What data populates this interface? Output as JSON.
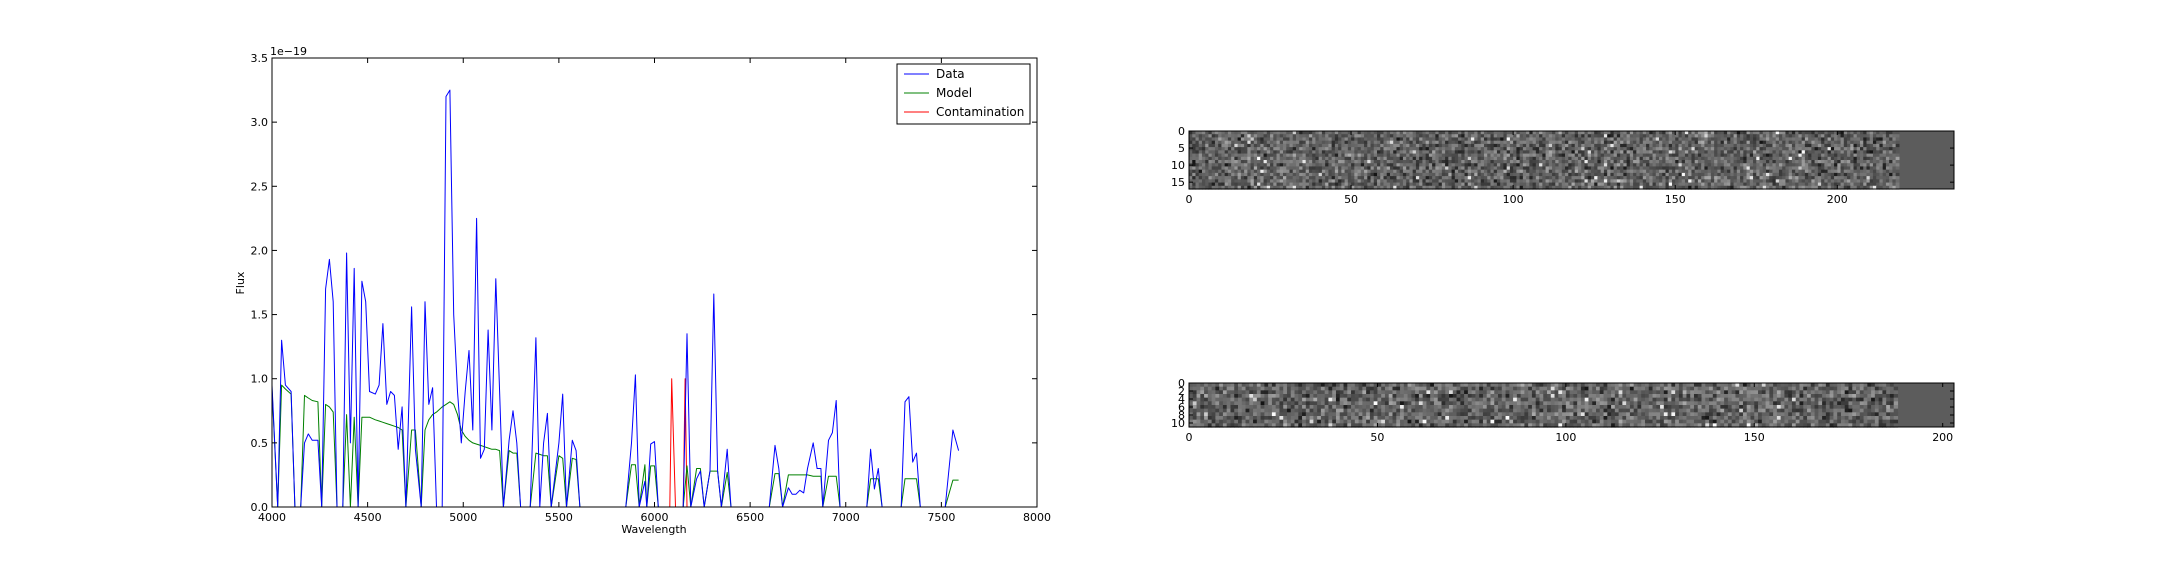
{
  "chart_data": [
    {
      "type": "line",
      "xlabel": "Wavelength",
      "ylabel": "Flux",
      "offset_text": "1e−19",
      "xlim": [
        4000,
        8000
      ],
      "ylim": [
        0.0,
        3.5
      ],
      "xticks": [
        "4000",
        "4500",
        "5000",
        "5500",
        "6000",
        "6500",
        "7000",
        "7500",
        "8000"
      ],
      "yticks": [
        "0.0",
        "0.5",
        "1.0",
        "1.5",
        "2.0",
        "2.5",
        "3.0",
        "3.5"
      ],
      "grid": false,
      "legend_position": "top-right",
      "series": [
        {
          "name": "Data",
          "color": "#0000ff",
          "points": [
            [
              4000,
              0.95
            ],
            [
              4030,
              0.0
            ],
            [
              4050,
              1.3
            ],
            [
              4070,
              0.95
            ],
            [
              4100,
              0.9
            ],
            [
              4120,
              0.0
            ],
            [
              4150,
              0.0
            ],
            [
              4170,
              0.5
            ],
            [
              4190,
              0.57
            ],
            [
              4210,
              0.52
            ],
            [
              4240,
              0.52
            ],
            [
              4260,
              0.0
            ],
            [
              4280,
              1.7
            ],
            [
              4300,
              1.93
            ],
            [
              4320,
              1.6
            ],
            [
              4340,
              0.0
            ],
            [
              4370,
              0.0
            ],
            [
              4390,
              1.98
            ],
            [
              4410,
              0.5
            ],
            [
              4430,
              1.86
            ],
            [
              4450,
              0.0
            ],
            [
              4470,
              1.76
            ],
            [
              4490,
              1.6
            ],
            [
              4510,
              0.9
            ],
            [
              4540,
              0.88
            ],
            [
              4560,
              0.95
            ],
            [
              4580,
              1.43
            ],
            [
              4600,
              0.8
            ],
            [
              4620,
              0.9
            ],
            [
              4640,
              0.87
            ],
            [
              4660,
              0.45
            ],
            [
              4680,
              0.78
            ],
            [
              4700,
              0.0
            ],
            [
              4730,
              1.56
            ],
            [
              4750,
              0.45
            ],
            [
              4780,
              0.0
            ],
            [
              4800,
              1.6
            ],
            [
              4820,
              0.8
            ],
            [
              4840,
              0.93
            ],
            [
              4860,
              0.0
            ],
            [
              4890,
              0.0
            ],
            [
              4910,
              3.2
            ],
            [
              4930,
              3.25
            ],
            [
              4950,
              1.5
            ],
            [
              4970,
              0.9
            ],
            [
              4990,
              0.5
            ],
            [
              5010,
              0.9
            ],
            [
              5030,
              1.22
            ],
            [
              5050,
              0.6
            ],
            [
              5070,
              2.25
            ],
            [
              5090,
              0.38
            ],
            [
              5110,
              0.45
            ],
            [
              5130,
              1.38
            ],
            [
              5150,
              0.6
            ],
            [
              5170,
              1.78
            ],
            [
              5190,
              0.9
            ],
            [
              5210,
              0.0
            ],
            [
              5240,
              0.52
            ],
            [
              5260,
              0.75
            ],
            [
              5280,
              0.5
            ],
            [
              5300,
              0.0
            ],
            [
              5350,
              0.0
            ],
            [
              5380,
              1.32
            ],
            [
              5400,
              0.0
            ],
            [
              5420,
              0.5
            ],
            [
              5440,
              0.73
            ],
            [
              5460,
              0.0
            ],
            [
              5500,
              0.5
            ],
            [
              5520,
              0.88
            ],
            [
              5540,
              0.0
            ],
            [
              5570,
              0.52
            ],
            [
              5590,
              0.44
            ],
            [
              5610,
              0.0
            ],
            [
              5850,
              0.0
            ],
            [
              5880,
              0.5
            ],
            [
              5900,
              1.03
            ],
            [
              5920,
              0.0
            ],
            [
              5950,
              0.2
            ],
            [
              5960,
              0.0
            ],
            [
              5980,
              0.49
            ],
            [
              6000,
              0.51
            ],
            [
              6020,
              0.0
            ],
            [
              6150,
              0.0
            ],
            [
              6170,
              1.35
            ],
            [
              6190,
              0.0
            ],
            [
              6220,
              0.22
            ],
            [
              6240,
              0.28
            ],
            [
              6260,
              0.0
            ],
            [
              6290,
              0.28
            ],
            [
              6310,
              1.66
            ],
            [
              6330,
              0.28
            ],
            [
              6350,
              0.0
            ],
            [
              6380,
              0.45
            ],
            [
              6400,
              0.0
            ],
            [
              6600,
              0.0
            ],
            [
              6630,
              0.48
            ],
            [
              6650,
              0.3
            ],
            [
              6670,
              0.0
            ],
            [
              6700,
              0.15
            ],
            [
              6720,
              0.1
            ],
            [
              6740,
              0.1
            ],
            [
              6760,
              0.13
            ],
            [
              6780,
              0.11
            ],
            [
              6800,
              0.3
            ],
            [
              6830,
              0.5
            ],
            [
              6850,
              0.3
            ],
            [
              6870,
              0.3
            ],
            [
              6880,
              0.0
            ],
            [
              6910,
              0.52
            ],
            [
              6930,
              0.58
            ],
            [
              6950,
              0.83
            ],
            [
              6970,
              0.0
            ],
            [
              7110,
              0.0
            ],
            [
              7130,
              0.45
            ],
            [
              7150,
              0.14
            ],
            [
              7170,
              0.3
            ],
            [
              7190,
              0.0
            ],
            [
              7290,
              0.0
            ],
            [
              7310,
              0.82
            ],
            [
              7330,
              0.86
            ],
            [
              7350,
              0.35
            ],
            [
              7370,
              0.42
            ],
            [
              7390,
              0.0
            ],
            [
              7520,
              0.0
            ],
            [
              7560,
              0.6
            ],
            [
              7590,
              0.44
            ]
          ]
        },
        {
          "name": "Model",
          "color": "#008000",
          "points": [
            [
              4000,
              0.92
            ],
            [
              4030,
              0.0
            ],
            [
              4050,
              0.95
            ],
            [
              4070,
              0.92
            ],
            [
              4100,
              0.88
            ],
            [
              4120,
              0.0
            ],
            [
              4150,
              0.0
            ],
            [
              4170,
              0.87
            ],
            [
              4190,
              0.85
            ],
            [
              4210,
              0.83
            ],
            [
              4240,
              0.82
            ],
            [
              4260,
              0.0
            ],
            [
              4280,
              0.8
            ],
            [
              4300,
              0.78
            ],
            [
              4320,
              0.74
            ],
            [
              4340,
              0.0
            ],
            [
              4370,
              0.0
            ],
            [
              4390,
              0.72
            ],
            [
              4410,
              0.0
            ],
            [
              4430,
              0.7
            ],
            [
              4450,
              0.0
            ],
            [
              4470,
              0.7
            ],
            [
              4490,
              0.7
            ],
            [
              4510,
              0.7
            ],
            [
              4540,
              0.68
            ],
            [
              4560,
              0.67
            ],
            [
              4580,
              0.66
            ],
            [
              4600,
              0.65
            ],
            [
              4620,
              0.64
            ],
            [
              4640,
              0.63
            ],
            [
              4660,
              0.62
            ],
            [
              4680,
              0.6
            ],
            [
              4700,
              0.0
            ],
            [
              4730,
              0.6
            ],
            [
              4750,
              0.6
            ],
            [
              4780,
              0.0
            ],
            [
              4800,
              0.6
            ],
            [
              4820,
              0.68
            ],
            [
              4840,
              0.72
            ],
            [
              4860,
              0.74
            ],
            [
              4890,
              0.78
            ],
            [
              4910,
              0.8
            ],
            [
              4930,
              0.82
            ],
            [
              4950,
              0.8
            ],
            [
              4970,
              0.72
            ],
            [
              4990,
              0.6
            ],
            [
              5010,
              0.55
            ],
            [
              5030,
              0.52
            ],
            [
              5050,
              0.5
            ],
            [
              5070,
              0.49
            ],
            [
              5090,
              0.48
            ],
            [
              5110,
              0.47
            ],
            [
              5130,
              0.46
            ],
            [
              5150,
              0.45
            ],
            [
              5170,
              0.45
            ],
            [
              5190,
              0.44
            ],
            [
              5210,
              0.0
            ],
            [
              5240,
              0.44
            ],
            [
              5260,
              0.42
            ],
            [
              5280,
              0.42
            ],
            [
              5300,
              0.0
            ],
            [
              5350,
              0.0
            ],
            [
              5380,
              0.42
            ],
            [
              5400,
              0.41
            ],
            [
              5420,
              0.4
            ],
            [
              5440,
              0.4
            ],
            [
              5460,
              0.0
            ],
            [
              5500,
              0.4
            ],
            [
              5520,
              0.38
            ],
            [
              5540,
              0.0
            ],
            [
              5570,
              0.38
            ],
            [
              5590,
              0.37
            ],
            [
              5610,
              0.0
            ],
            [
              5850,
              0.0
            ],
            [
              5880,
              0.33
            ],
            [
              5900,
              0.33
            ],
            [
              5920,
              0.0
            ],
            [
              5950,
              0.33
            ],
            [
              5960,
              0.0
            ],
            [
              5980,
              0.32
            ],
            [
              6000,
              0.32
            ],
            [
              6020,
              0.0
            ],
            [
              6150,
              0.0
            ],
            [
              6170,
              0.32
            ],
            [
              6190,
              0.0
            ],
            [
              6220,
              0.3
            ],
            [
              6240,
              0.3
            ],
            [
              6260,
              0.0
            ],
            [
              6290,
              0.28
            ],
            [
              6310,
              0.28
            ],
            [
              6330,
              0.28
            ],
            [
              6350,
              0.0
            ],
            [
              6380,
              0.27
            ],
            [
              6400,
              0.0
            ],
            [
              6600,
              0.0
            ],
            [
              6630,
              0.26
            ],
            [
              6650,
              0.26
            ],
            [
              6670,
              0.0
            ],
            [
              6700,
              0.25
            ],
            [
              6720,
              0.25
            ],
            [
              6740,
              0.25
            ],
            [
              6760,
              0.25
            ],
            [
              6780,
              0.25
            ],
            [
              6800,
              0.25
            ],
            [
              6830,
              0.24
            ],
            [
              6850,
              0.24
            ],
            [
              6870,
              0.24
            ],
            [
              6880,
              0.0
            ],
            [
              6910,
              0.24
            ],
            [
              6930,
              0.24
            ],
            [
              6950,
              0.24
            ],
            [
              6970,
              0.0
            ],
            [
              7110,
              0.0
            ],
            [
              7130,
              0.22
            ],
            [
              7150,
              0.22
            ],
            [
              7170,
              0.22
            ],
            [
              7190,
              0.0
            ],
            [
              7290,
              0.0
            ],
            [
              7310,
              0.22
            ],
            [
              7330,
              0.22
            ],
            [
              7350,
              0.22
            ],
            [
              7370,
              0.22
            ],
            [
              7390,
              0.0
            ],
            [
              7520,
              0.0
            ],
            [
              7560,
              0.21
            ],
            [
              7590,
              0.21
            ]
          ]
        },
        {
          "name": "Contamination",
          "color": "#ff0000",
          "points": [
            [
              4000,
              0.0
            ],
            [
              6080,
              0.0
            ],
            [
              6090,
              1.0
            ],
            [
              6110,
              0.0
            ],
            [
              6150,
              0.0
            ],
            [
              6160,
              1.0
            ],
            [
              6170,
              0.0
            ],
            [
              7590,
              0.0
            ]
          ]
        }
      ]
    },
    {
      "type": "heatmap",
      "colormap": "gray",
      "rows": 18,
      "cols": 236,
      "data_cols": 219,
      "xlim": [
        0,
        236
      ],
      "ylim": [
        17,
        0
      ],
      "xticks": [
        "0",
        "50",
        "100",
        "150",
        "200"
      ],
      "yticks": [
        "0",
        "5",
        "10",
        "15"
      ],
      "grid": false
    },
    {
      "type": "heatmap",
      "colormap": "gray",
      "rows": 12,
      "cols": 203,
      "data_cols": 188,
      "xlim": [
        0,
        203
      ],
      "ylim": [
        11,
        0
      ],
      "xticks": [
        "0",
        "50",
        "100",
        "150",
        "200"
      ],
      "yticks": [
        "0",
        "2",
        "4",
        "6",
        "8",
        "10"
      ],
      "grid": false
    }
  ]
}
